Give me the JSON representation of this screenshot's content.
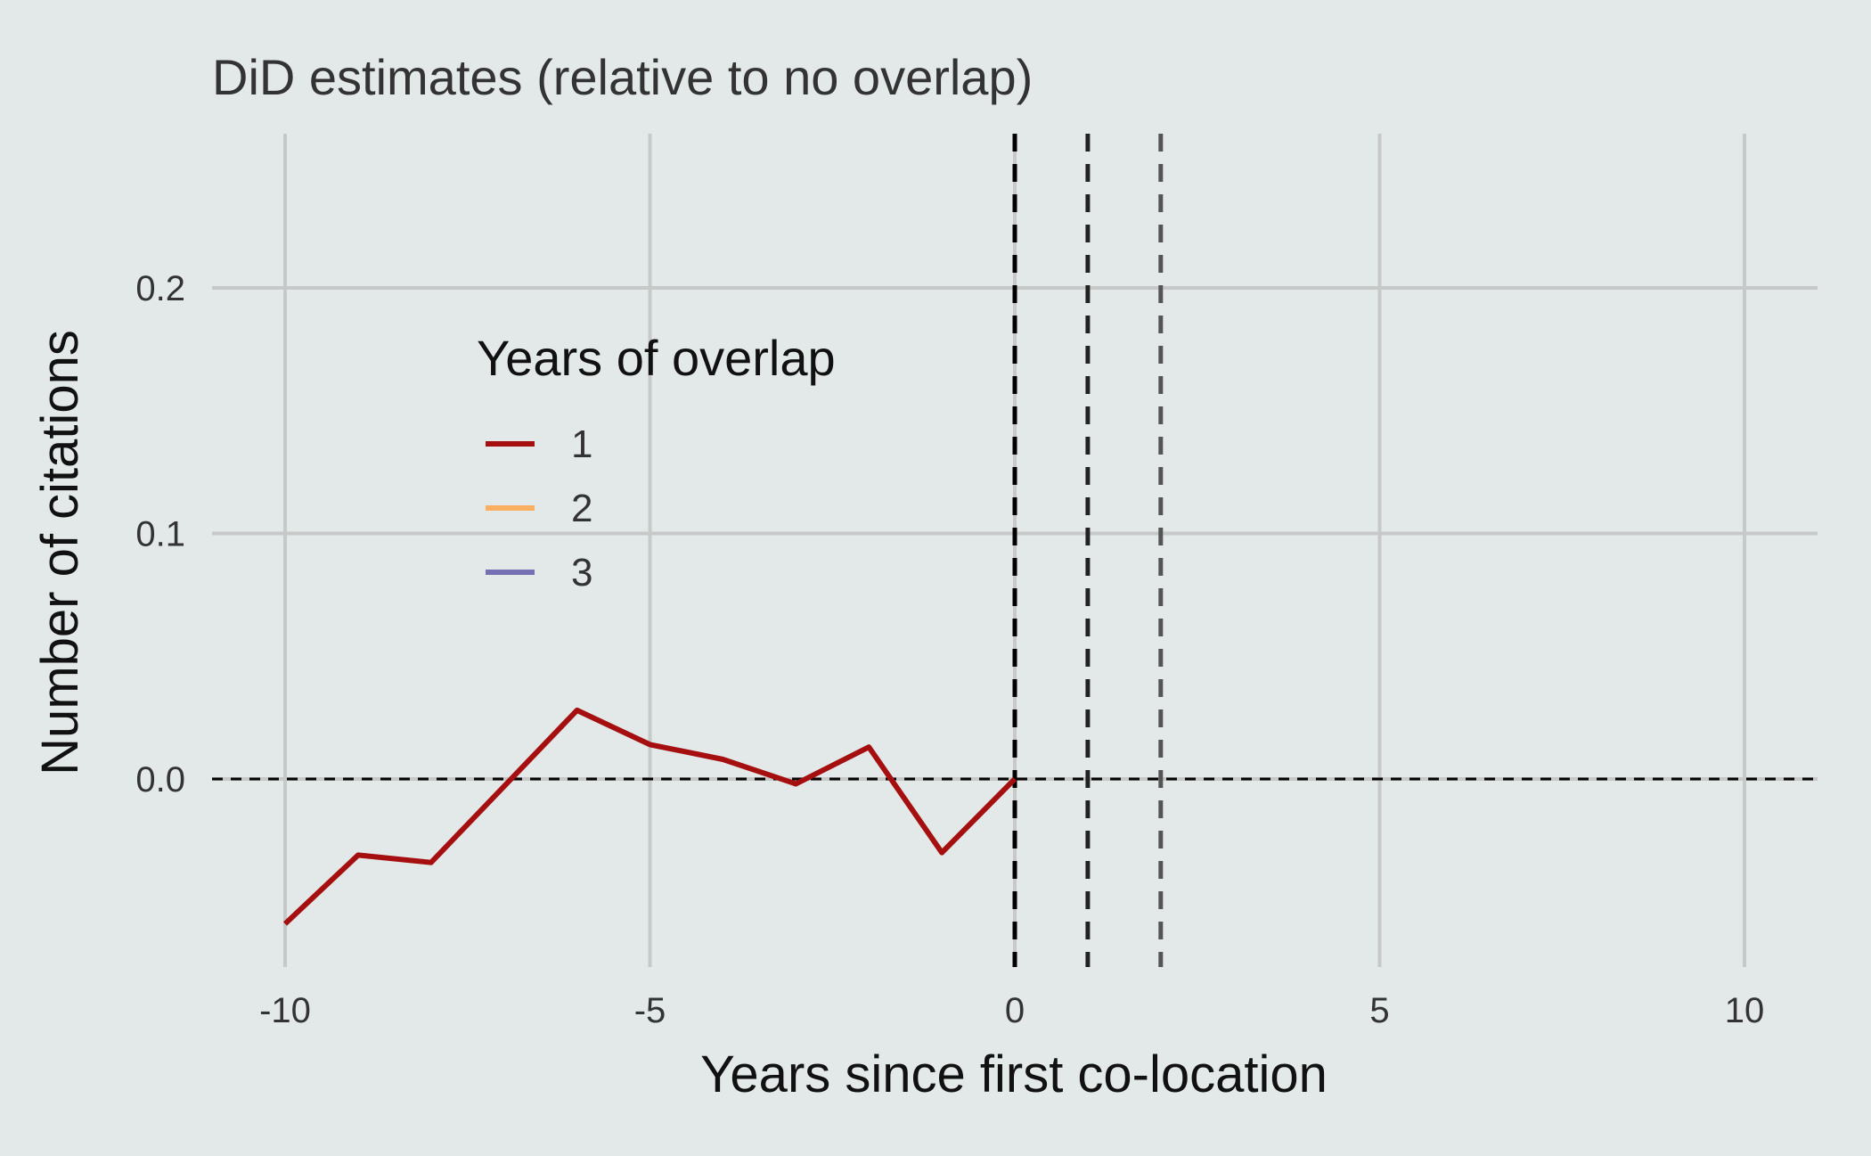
{
  "chart_data": {
    "type": "line",
    "title": "DiD estimates (relative to no overlap)",
    "xlabel": "Years since first co-location",
    "ylabel": "Number of citations",
    "xlim": [
      -11,
      11
    ],
    "ylim": [
      -0.08,
      0.25
    ],
    "x_ticks": [
      -10,
      -5,
      0,
      5,
      10
    ],
    "x_tick_labels": [
      "-10",
      "-5",
      "0",
      "5",
      "10"
    ],
    "y_ticks": [
      0.0,
      0.1,
      0.2
    ],
    "y_tick_labels": [
      "0.0",
      "0.1",
      "0.2"
    ],
    "grid": true,
    "legend": {
      "title": "Years of overlap",
      "placement": "top-left-inside",
      "entries": [
        {
          "label": "1",
          "color": "#a50f0f"
        },
        {
          "label": "2",
          "color": "#fdae61"
        },
        {
          "label": "3",
          "color": "#7570b3"
        }
      ]
    },
    "series": [
      {
        "name": "1",
        "color": "#a50f0f",
        "x": [
          -10,
          -9,
          -8,
          -7,
          -6,
          -5,
          -4,
          -3,
          -2,
          -1,
          0
        ],
        "y": [
          -0.059,
          -0.031,
          -0.034,
          -0.003,
          0.028,
          0.014,
          0.008,
          -0.002,
          0.013,
          -0.03,
          0.0
        ]
      }
    ],
    "reference_lines": {
      "horizontal": [
        {
          "y": 0.0,
          "color": "#000000",
          "style": "dashed"
        }
      ],
      "vertical": [
        {
          "x": 0,
          "color": "#000000",
          "style": "dashed"
        },
        {
          "x": 1,
          "color": "#222222",
          "style": "dashed"
        },
        {
          "x": 2,
          "color": "#555555",
          "style": "dashed"
        }
      ]
    }
  }
}
